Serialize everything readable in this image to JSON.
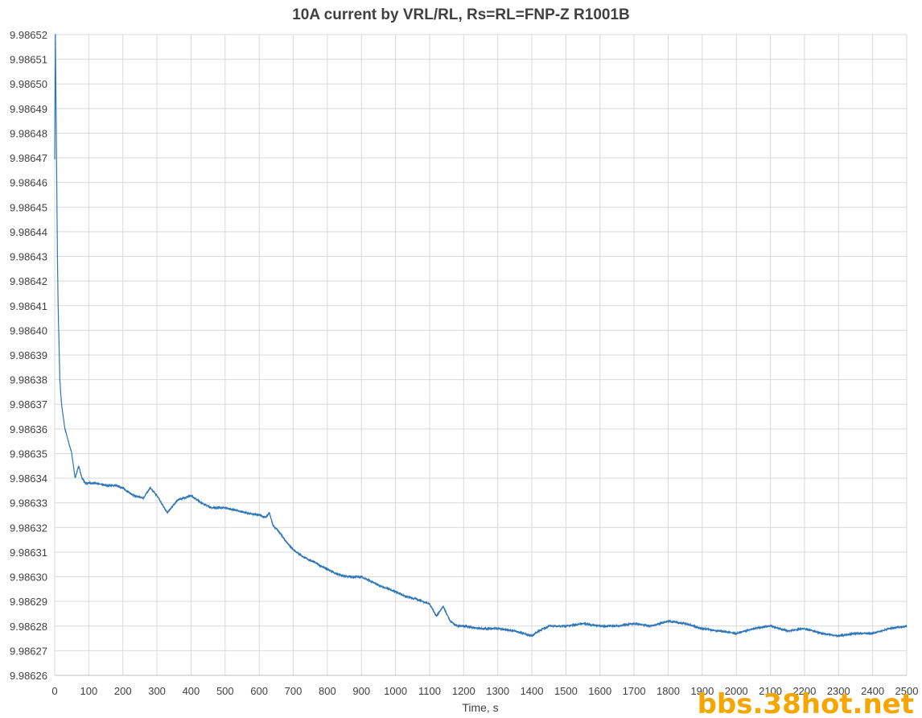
{
  "chart_data": {
    "type": "line",
    "title": "10A current by VRL/RL, Rs=RL=FNP-Z R1001B",
    "xlabel": "Time, s",
    "ylabel": "",
    "xlim": [
      0,
      2500
    ],
    "ylim": [
      9.98626,
      9.98652
    ],
    "x_ticks": [
      "0",
      "100",
      "200",
      "300",
      "400",
      "500",
      "600",
      "700",
      "800",
      "900",
      "1000",
      "1100",
      "1200",
      "1300",
      "1400",
      "1500",
      "1600",
      "1700",
      "1800",
      "1900",
      "2000",
      "2100",
      "2200",
      "2300",
      "2400",
      "2500"
    ],
    "y_ticks": [
      "9.98626",
      "9.98627",
      "9.98628",
      "9.98629",
      "9.98630",
      "9.98631",
      "9.98632",
      "9.98633",
      "9.98634",
      "9.98635",
      "9.98636",
      "9.98637",
      "9.98638",
      "9.98639",
      "9.98640",
      "9.98641",
      "9.98642",
      "9.98643",
      "9.98644",
      "9.98645",
      "9.98646",
      "9.98647",
      "9.98648",
      "9.98649",
      "9.98650",
      "9.98651",
      "9.98652"
    ],
    "grid": true,
    "legend": "none",
    "series": [
      {
        "color": "#2e75b6",
        "x": [
          0,
          2,
          4,
          6,
          8,
          10,
          15,
          20,
          25,
          30,
          40,
          50,
          60,
          70,
          80,
          90,
          100,
          120,
          150,
          180,
          200,
          230,
          260,
          280,
          300,
          330,
          360,
          380,
          400,
          430,
          460,
          500,
          530,
          560,
          600,
          620,
          630,
          640,
          660,
          680,
          700,
          730,
          760,
          800,
          830,
          860,
          900,
          930,
          960,
          1000,
          1030,
          1060,
          1100,
          1120,
          1140,
          1160,
          1180,
          1200,
          1250,
          1300,
          1350,
          1400,
          1420,
          1450,
          1500,
          1550,
          1600,
          1650,
          1700,
          1750,
          1800,
          1850,
          1900,
          1950,
          2000,
          2050,
          2100,
          2150,
          2200,
          2250,
          2300,
          2350,
          2400,
          2450,
          2500
        ],
        "y": [
          9.98647,
          9.98652,
          9.98649,
          9.98646,
          9.98643,
          9.98641,
          9.98638,
          9.98637,
          9.986365,
          9.98636,
          9.986355,
          9.98635,
          9.98634,
          9.986345,
          9.98634,
          9.986338,
          9.986338,
          9.986338,
          9.986337,
          9.986337,
          9.986336,
          9.986333,
          9.986332,
          9.986336,
          9.986333,
          9.986326,
          9.986331,
          9.986332,
          9.986333,
          9.98633,
          9.986328,
          9.986328,
          9.986327,
          9.986326,
          9.986325,
          9.986324,
          9.986326,
          9.986321,
          9.986318,
          9.986314,
          9.986311,
          9.986308,
          9.986306,
          9.986303,
          9.986301,
          9.9863,
          9.9863,
          9.986298,
          9.986296,
          9.986294,
          9.986292,
          9.986291,
          9.986289,
          9.986284,
          9.986288,
          9.986282,
          9.98628,
          9.98628,
          9.986279,
          9.986279,
          9.986278,
          9.986276,
          9.986278,
          9.98628,
          9.98628,
          9.986281,
          9.98628,
          9.98628,
          9.986281,
          9.98628,
          9.986282,
          9.986281,
          9.986279,
          9.986278,
          9.986277,
          9.986279,
          9.98628,
          9.986278,
          9.986279,
          9.986277,
          9.986276,
          9.986277,
          9.986277,
          9.986279,
          9.98628
        ]
      }
    ]
  },
  "watermark": "bbs.38hot.net"
}
